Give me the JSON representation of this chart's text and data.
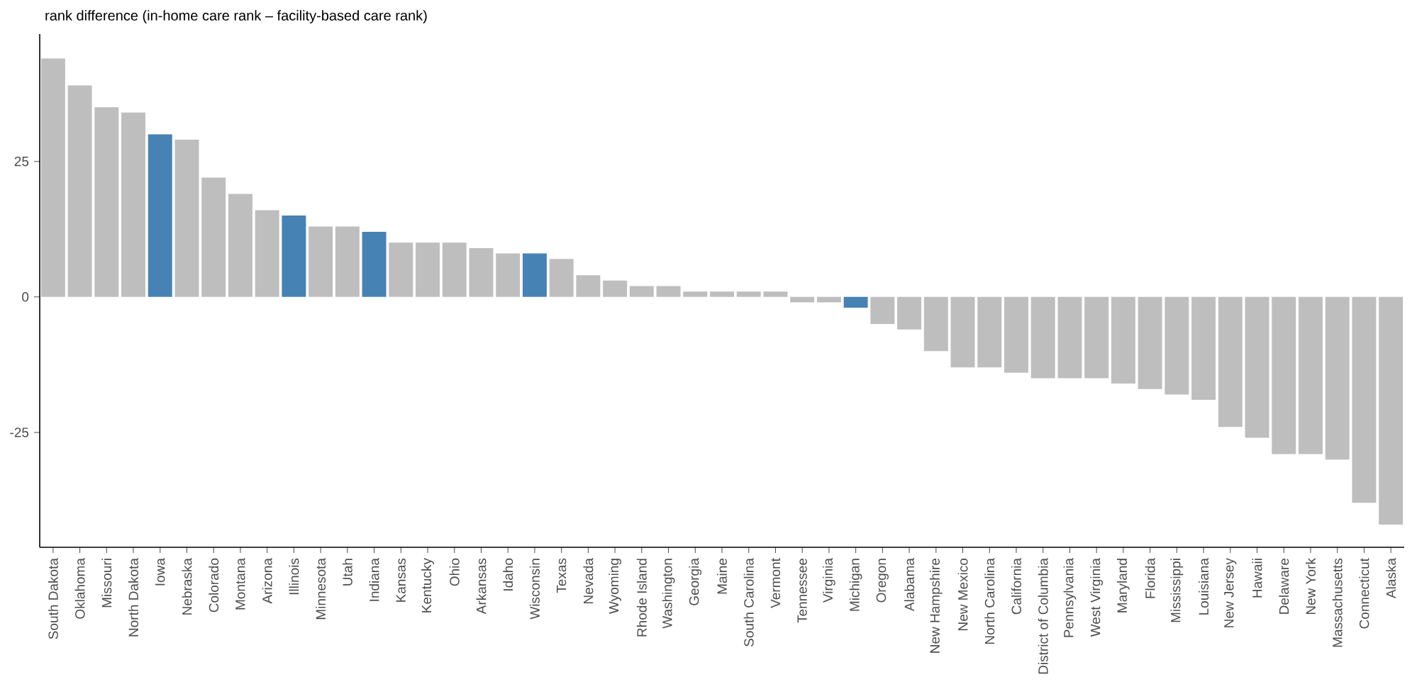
{
  "chart_data": {
    "type": "bar",
    "ylabel": "rank difference (in-home care rank – facility-based care rank)",
    "categories": [
      "South Dakota",
      "Oklahoma",
      "Missouri",
      "North Dakota",
      "Iowa",
      "Nebraska",
      "Colorado",
      "Montana",
      "Arizona",
      "Illinois",
      "Minnesota",
      "Utah",
      "Indiana",
      "Kansas",
      "Kentucky",
      "Ohio",
      "Arkansas",
      "Idaho",
      "Wisconsin",
      "Texas",
      "Nevada",
      "Wyoming",
      "Rhode Island",
      "Washington",
      "Georgia",
      "Maine",
      "South Carolina",
      "Vermont",
      "Tennessee",
      "Virginia",
      "Michigan",
      "Oregon",
      "Alabama",
      "New Hampshire",
      "New Mexico",
      "North Carolina",
      "California",
      "District of Columbia",
      "Pennsylvania",
      "West Virginia",
      "Maryland",
      "Florida",
      "Mississippi",
      "Louisiana",
      "New Jersey",
      "Hawaii",
      "Delaware",
      "New York",
      "Massachusetts",
      "Connecticut",
      "Alaska"
    ],
    "values": [
      44,
      39,
      35,
      34,
      30,
      29,
      22,
      19,
      16,
      15,
      13,
      13,
      12,
      10,
      10,
      10,
      9,
      8,
      8,
      7,
      4,
      3,
      2,
      2,
      1,
      1,
      1,
      1,
      -1,
      -1,
      -2,
      -5,
      -6,
      -10,
      -13,
      -13,
      -14,
      -15,
      -15,
      -15,
      -16,
      -17,
      -18,
      -19,
      -24,
      -26,
      -29,
      -29,
      -30,
      -38,
      -42
    ],
    "colors": [
      "#bebebe",
      "#bebebe",
      "#bebebe",
      "#bebebe",
      "#4682b4",
      "#bebebe",
      "#bebebe",
      "#bebebe",
      "#bebebe",
      "#4682b4",
      "#bebebe",
      "#bebebe",
      "#4682b4",
      "#bebebe",
      "#bebebe",
      "#bebebe",
      "#bebebe",
      "#bebebe",
      "#4682b4",
      "#bebebe",
      "#bebebe",
      "#bebebe",
      "#bebebe",
      "#bebebe",
      "#bebebe",
      "#bebebe",
      "#bebebe",
      "#bebebe",
      "#bebebe",
      "#bebebe",
      "#4682b4",
      "#bebebe",
      "#bebebe",
      "#bebebe",
      "#bebebe",
      "#bebebe",
      "#bebebe",
      "#bebebe",
      "#bebebe",
      "#bebebe",
      "#bebebe",
      "#bebebe",
      "#bebebe",
      "#bebebe",
      "#bebebe",
      "#bebebe",
      "#bebebe",
      "#bebebe",
      "#bebebe",
      "#bebebe",
      "#bebebe"
    ],
    "ylim": [
      -46.2,
      48.5
    ],
    "yticks": [
      -25,
      0,
      25
    ],
    "grid": false
  }
}
